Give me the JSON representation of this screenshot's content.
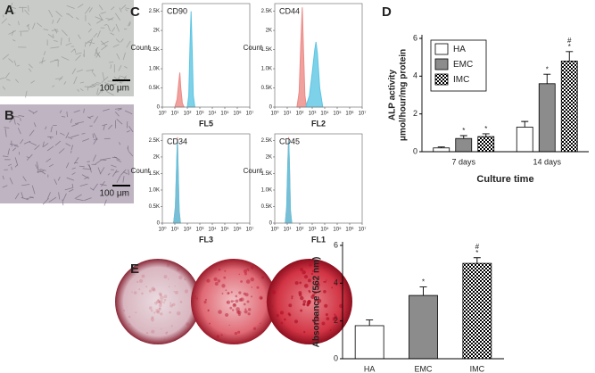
{
  "panels": {
    "A": "A",
    "B": "B",
    "C": "C",
    "D": "D",
    "E": "E",
    "scale_bar_A": "100 μm",
    "scale_bar_B": "100 μm"
  },
  "chart_data": [
    {
      "type": "area",
      "title": "CD90",
      "xlabel": "FL5",
      "ylabel": "Count",
      "log_x": true,
      "xlim": [
        1,
        10000000
      ],
      "xticks": [
        {
          "value": 1,
          "label": "10⁰"
        },
        {
          "value": 10,
          "label": "10¹"
        },
        {
          "value": 100,
          "label": "10²"
        },
        {
          "value": 1000,
          "label": "10³"
        },
        {
          "value": 10000,
          "label": "10⁴"
        },
        {
          "value": 100000,
          "label": "10⁵"
        },
        {
          "value": 1000000,
          "label": "10⁶"
        },
        {
          "value": 10000000,
          "label": "10⁷"
        }
      ],
      "ylim": [
        0,
        2700
      ],
      "yticks": [
        0,
        {
          "value": 500,
          "label": "0.5K"
        },
        {
          "value": 1000,
          "label": "1.0K"
        },
        {
          "value": 1500,
          "label": "1.5K"
        },
        {
          "value": 2000,
          "label": "2K"
        },
        {
          "value": 2500,
          "label": "2.5K"
        }
      ],
      "series": [
        {
          "color": "#ec8a86",
          "x": [
            10,
            15,
            20,
            25,
            30,
            40,
            55
          ],
          "values": [
            0,
            200,
            600,
            900,
            500,
            100,
            0
          ]
        },
        {
          "color": "#5cc6e2",
          "x": [
            100,
            130,
            160,
            200,
            250,
            300,
            400
          ],
          "values": [
            0,
            300,
            1500,
            2500,
            1400,
            300,
            0
          ]
        }
      ]
    },
    {
      "type": "area",
      "title": "CD44",
      "xlabel": "FL2",
      "ylabel": "Count",
      "log_x": true,
      "xlim": [
        1,
        10000000
      ],
      "xticks": [
        {
          "value": 1,
          "label": "10⁰"
        },
        {
          "value": 10,
          "label": "10¹"
        },
        {
          "value": 100,
          "label": "10²"
        },
        {
          "value": 1000,
          "label": "10³"
        },
        {
          "value": 10000,
          "label": "10⁴"
        },
        {
          "value": 100000,
          "label": "10⁵"
        },
        {
          "value": 1000000,
          "label": "10⁶"
        },
        {
          "value": 10000000,
          "label": "10⁷"
        }
      ],
      "ylim": [
        0,
        2700
      ],
      "yticks": [
        0,
        {
          "value": 500,
          "label": "0.5K"
        },
        {
          "value": 1000,
          "label": "1.0K"
        },
        {
          "value": 1500,
          "label": "1.5K"
        },
        {
          "value": 2000,
          "label": "2K"
        },
        {
          "value": 2500,
          "label": "2.5K"
        }
      ],
      "series": [
        {
          "color": "#ec8a86",
          "x": [
            60,
            90,
            120,
            160,
            200,
            260,
            350
          ],
          "values": [
            0,
            400,
            1600,
            2600,
            1500,
            300,
            0
          ]
        },
        {
          "color": "#5cc6e2",
          "x": [
            300,
            600,
            1000,
            1600,
            2000,
            2600,
            4000,
            7000
          ],
          "values": [
            0,
            300,
            900,
            1500,
            1700,
            1400,
            500,
            0
          ]
        }
      ]
    },
    {
      "type": "area",
      "title": "CD34",
      "xlabel": "FL3",
      "ylabel": "Count",
      "log_x": true,
      "xlim": [
        1,
        10000000
      ],
      "xticks": [
        {
          "value": 1,
          "label": "10⁰"
        },
        {
          "value": 10,
          "label": "10¹"
        },
        {
          "value": 100,
          "label": "10²"
        },
        {
          "value": 1000,
          "label": "10³"
        },
        {
          "value": 10000,
          "label": "10⁴"
        },
        {
          "value": 100000,
          "label": "10⁵"
        },
        {
          "value": 1000000,
          "label": "10⁶"
        },
        {
          "value": 10000000,
          "label": "10⁷"
        }
      ],
      "ylim": [
        0,
        2700
      ],
      "yticks": [
        0,
        {
          "value": 500,
          "label": "0.5K"
        },
        {
          "value": 1000,
          "label": "1.0K"
        },
        {
          "value": 1500,
          "label": "1.5K"
        },
        {
          "value": 2000,
          "label": "2K"
        },
        {
          "value": 2500,
          "label": "2.5K"
        }
      ],
      "series": [
        {
          "color": "#ec8a86",
          "x": [
            8,
            11,
            14,
            16,
            18,
            22,
            28
          ],
          "values": [
            0,
            500,
            1800,
            2600,
            1800,
            400,
            0
          ]
        },
        {
          "color": "#5cc6e2",
          "x": [
            8,
            11,
            14,
            16,
            18,
            22,
            28
          ],
          "values": [
            0,
            450,
            1700,
            2500,
            1700,
            350,
            0
          ]
        }
      ]
    },
    {
      "type": "area",
      "title": "CD45",
      "xlabel": "FL1",
      "ylabel": "Count",
      "log_x": true,
      "xlim": [
        1,
        10000000
      ],
      "xticks": [
        {
          "value": 1,
          "label": "10⁰"
        },
        {
          "value": 10,
          "label": "10¹"
        },
        {
          "value": 100,
          "label": "10²"
        },
        {
          "value": 1000,
          "label": "10³"
        },
        {
          "value": 10000,
          "label": "10⁴"
        },
        {
          "value": 100000,
          "label": "10⁵"
        },
        {
          "value": 1000000,
          "label": "10⁶"
        },
        {
          "value": 10000000,
          "label": "10⁷"
        }
      ],
      "ylim": [
        0,
        2700
      ],
      "yticks": [
        0,
        {
          "value": 500,
          "label": "0.5K"
        },
        {
          "value": 1000,
          "label": "1.0K"
        },
        {
          "value": 1500,
          "label": "1.5K"
        },
        {
          "value": 2000,
          "label": "2K"
        },
        {
          "value": 2500,
          "label": "2.5K"
        }
      ],
      "series": [
        {
          "color": "#ec8a86",
          "x": [
            7,
            9,
            11,
            13,
            15,
            18,
            23
          ],
          "values": [
            0,
            500,
            1800,
            2600,
            1800,
            400,
            0
          ]
        },
        {
          "color": "#5cc6e2",
          "x": [
            7,
            9,
            11,
            13,
            15,
            18,
            23
          ],
          "values": [
            0,
            450,
            1700,
            2500,
            1700,
            350,
            0
          ]
        }
      ]
    },
    {
      "type": "bar",
      "ylabel": [
        "ALP activity",
        "μmol/hour/mg protein"
      ],
      "xlabel": "Culture time",
      "categories": [
        "7 days",
        "14 days"
      ],
      "ylim": [
        0,
        6
      ],
      "yticks": [
        0,
        2,
        4,
        6
      ],
      "legend": "top-left",
      "series": [
        {
          "name": "HA",
          "color": "#ffffff",
          "pattern": "none",
          "values": [
            0.2,
            1.3
          ],
          "errors": [
            0.05,
            0.3
          ]
        },
        {
          "name": "EMC",
          "color": "#8c8c8c",
          "pattern": "none",
          "values": [
            0.7,
            3.6
          ],
          "errors": [
            0.15,
            0.5
          ]
        },
        {
          "name": "IMC",
          "color": "#000000",
          "pattern": "checker",
          "values": [
            0.8,
            4.8
          ],
          "errors": [
            0.15,
            0.5
          ]
        }
      ],
      "annotations": [
        {
          "text": "*",
          "series": 1,
          "index": 0
        },
        {
          "text": "*",
          "series": 2,
          "index": 0
        },
        {
          "text": "*",
          "series": 1,
          "index": 1
        },
        {
          "text": "*",
          "series": 2,
          "index": 1
        },
        {
          "text": "#",
          "series": 2,
          "index": 1
        }
      ]
    },
    {
      "type": "bar",
      "ylabel": [
        "Absorbance (562 nm)"
      ],
      "categories": [
        "HA",
        "EMC",
        "IMC"
      ],
      "ylim": [
        0,
        6
      ],
      "yticks": [
        0,
        2,
        4,
        6
      ],
      "series": [
        {
          "colors": [
            "#ffffff",
            "#8c8c8c",
            "#000000"
          ],
          "patterns": [
            "none",
            "none",
            "checker"
          ],
          "values": [
            1.75,
            3.35,
            5.05
          ],
          "errors": [
            0.3,
            0.45,
            0.3
          ]
        }
      ],
      "annotations": [
        {
          "text": "*",
          "series": 0,
          "index": 1
        },
        {
          "text": "*",
          "series": 0,
          "index": 2
        },
        {
          "text": "#",
          "series": 0,
          "index": 2
        }
      ]
    }
  ]
}
